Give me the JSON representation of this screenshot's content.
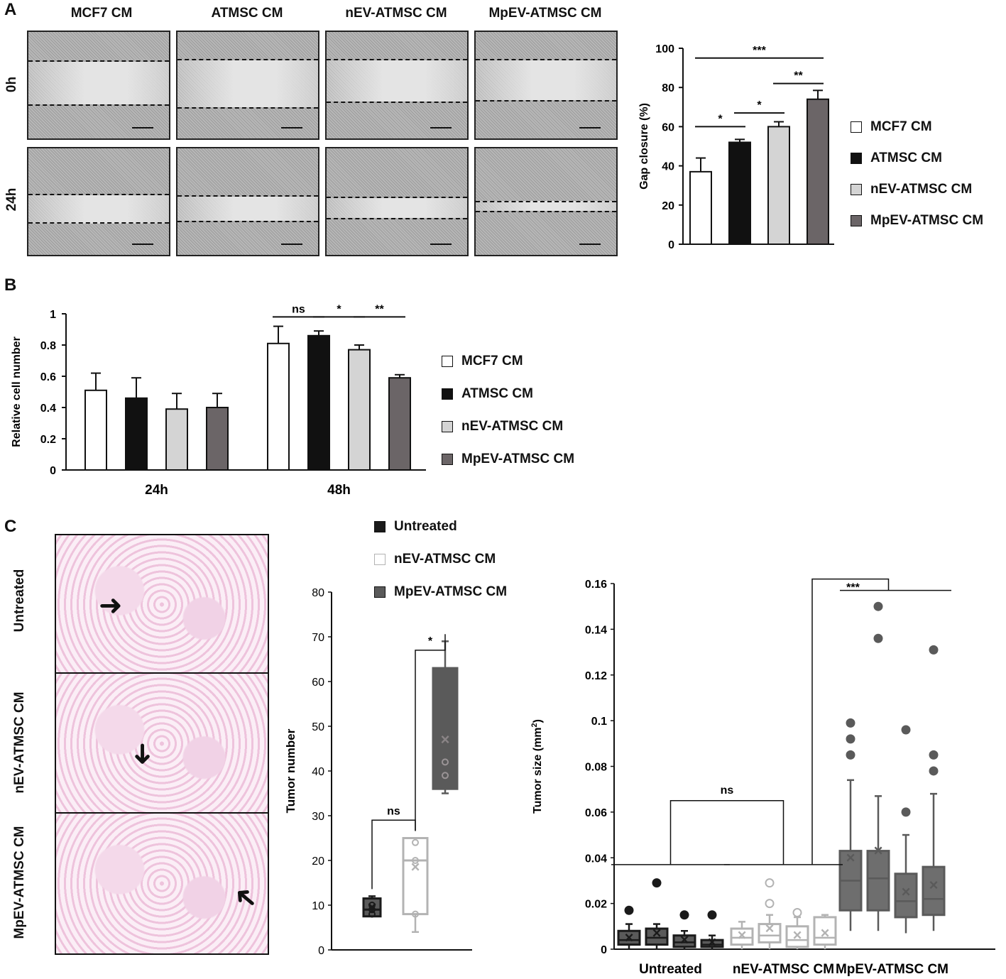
{
  "panels": {
    "a": {
      "label": "A"
    },
    "b": {
      "label": "B"
    },
    "c": {
      "label": "C"
    }
  },
  "panel_a": {
    "columns": [
      "MCF7 CM",
      "ATMSC CM",
      "nEV-ATMSC CM",
      "MpEV-ATMSC CM"
    ],
    "rows": [
      "0h",
      "24h"
    ]
  },
  "panel_c_images": {
    "rows": [
      "Untreated",
      "nEV-ATMSC CM",
      "MpEV-ATMSC CM"
    ]
  },
  "colors": {
    "white": "#ffffff",
    "black": "#111111",
    "light_gray": "#d4d4d4",
    "dark_gray": "#6b6567",
    "box_dark": "#1a1a1a",
    "box_light": "#b3b3b3",
    "box_mid": "#5a5a5a"
  },
  "chart_data": [
    {
      "type": "bar",
      "ylabel": "Gap closure (%)",
      "ylim": [
        0,
        100
      ],
      "yticks": [
        0,
        20,
        40,
        60,
        80,
        100
      ],
      "categories": [
        "MCF7 CM",
        "ATMSC CM",
        "nEV-ATMSC CM",
        "MpEV-ATMSC CM"
      ],
      "values": [
        37,
        52,
        60,
        74
      ],
      "errors": [
        7,
        1.5,
        2.5,
        4.5
      ],
      "legend": [
        "MCF7 CM",
        "ATMSC CM",
        "nEV-ATMSC CM",
        "MpEV-ATMSC CM"
      ],
      "significance": [
        {
          "from": 0,
          "to": 1,
          "label": "*",
          "y": 60
        },
        {
          "from": 1,
          "to": 2,
          "label": "*",
          "y": 67
        },
        {
          "from": 2,
          "to": 3,
          "label": "**",
          "y": 82
        },
        {
          "from": 0,
          "to": 3,
          "label": "***",
          "y": 95
        }
      ]
    },
    {
      "type": "bar",
      "ylabel": "Relative cell number",
      "ylim": [
        0,
        1
      ],
      "yticks": [
        "0",
        "0.2",
        "0.4",
        "0.6",
        "0.8",
        "1"
      ],
      "categories": [
        "24h",
        "48h"
      ],
      "series": [
        {
          "name": "MCF7 CM",
          "values": [
            0.51,
            0.81
          ],
          "errors": [
            0.11,
            0.11
          ]
        },
        {
          "name": "ATMSC CM",
          "values": [
            0.46,
            0.86
          ],
          "errors": [
            0.13,
            0.03
          ]
        },
        {
          "name": "nEV-ATMSC CM",
          "values": [
            0.39,
            0.77
          ],
          "errors": [
            0.1,
            0.03
          ]
        },
        {
          "name": "MpEV-ATMSC CM",
          "values": [
            0.4,
            0.59
          ],
          "errors": [
            0.09,
            0.02
          ]
        }
      ],
      "significance": [
        {
          "group": 1,
          "from": 0,
          "to": 1,
          "label": "ns",
          "y": 0.98
        },
        {
          "group": 1,
          "from": 1,
          "to": 2,
          "label": "*",
          "y": 0.98
        },
        {
          "group": 1,
          "from": 2,
          "to": 3,
          "label": "**",
          "y": 0.98
        }
      ]
    },
    {
      "type": "box",
      "ylabel": "Tumor number",
      "ylim": [
        0,
        80
      ],
      "yticks": [
        0,
        10,
        20,
        30,
        40,
        50,
        60,
        70,
        80
      ],
      "legend": [
        "Untreated",
        "nEV-ATMSC CM",
        "MpEV-ATMSC CM"
      ],
      "boxes": [
        {
          "name": "Untreated",
          "min": 7.5,
          "q1": 7.5,
          "median": 9,
          "q3": 11.5,
          "max": 12,
          "mean": 9.5,
          "points": [
            9,
            10,
            8
          ]
        },
        {
          "name": "nEV-ATMSC CM",
          "min": 4,
          "q1": 8,
          "median": 20,
          "q3": 25,
          "max": 25,
          "mean": 18.5,
          "points": [
            20,
            24,
            8
          ]
        },
        {
          "name": "MpEV-ATMSC CM",
          "min": 35,
          "q1": 36,
          "median": 42,
          "q3": 63,
          "max": 69,
          "mean": 47,
          "points": [
            39,
            42
          ]
        }
      ],
      "significance": [
        {
          "from": 0,
          "to": 1,
          "label": "ns",
          "y": 29
        },
        {
          "from": 1,
          "to": 2,
          "label": "*",
          "y": 67
        }
      ]
    },
    {
      "type": "box",
      "ylabel": "Tumor size (mm",
      "ylabel_sup": "2",
      "ylabel_end": ")",
      "ylim": [
        0,
        0.16
      ],
      "yticks": [
        "0",
        "0.02",
        "0.04",
        "0.06",
        "0.08",
        "0.1",
        "0.12",
        "0.14",
        "0.16"
      ],
      "groups": [
        "Untreated",
        "nEV-ATMSC CM",
        "MpEV-ATMSC CM"
      ],
      "boxes": [
        {
          "group": 0,
          "q1": 0.002,
          "median": 0.004,
          "q3": 0.008,
          "min": 0,
          "max": 0.011,
          "mean": 0.005,
          "outliers": [
            0.017
          ]
        },
        {
          "group": 0,
          "q1": 0.002,
          "median": 0.005,
          "q3": 0.009,
          "min": 0,
          "max": 0.011,
          "mean": 0.007,
          "outliers": [
            0.029
          ]
        },
        {
          "group": 0,
          "q1": 0.001,
          "median": 0.003,
          "q3": 0.006,
          "min": 0,
          "max": 0.008,
          "mean": 0.004,
          "outliers": [
            0.015
          ]
        },
        {
          "group": 0,
          "q1": 0.001,
          "median": 0.002,
          "q3": 0.004,
          "min": 0,
          "max": 0.006,
          "mean": 0.003,
          "outliers": [
            0.015
          ]
        },
        {
          "group": 1,
          "q1": 0.002,
          "median": 0.005,
          "q3": 0.009,
          "min": 0,
          "max": 0.012,
          "mean": 0.006,
          "outliers": []
        },
        {
          "group": 1,
          "q1": 0.003,
          "median": 0.006,
          "q3": 0.011,
          "min": 0,
          "max": 0.015,
          "mean": 0.009,
          "outliers": [
            0.029,
            0.02
          ]
        },
        {
          "group": 1,
          "q1": 0.001,
          "median": 0.004,
          "q3": 0.01,
          "min": 0,
          "max": 0.014,
          "mean": 0.006,
          "outliers": [
            0.016
          ]
        },
        {
          "group": 1,
          "q1": 0.002,
          "median": 0.005,
          "q3": 0.014,
          "min": 0,
          "max": 0.015,
          "mean": 0.007,
          "outliers": []
        },
        {
          "group": 2,
          "q1": 0.017,
          "median": 0.03,
          "q3": 0.043,
          "min": 0.008,
          "max": 0.074,
          "mean": 0.04,
          "outliers": [
            0.085,
            0.092,
            0.099
          ]
        },
        {
          "group": 2,
          "q1": 0.017,
          "median": 0.031,
          "q3": 0.043,
          "min": 0.008,
          "max": 0.067,
          "mean": 0.043,
          "outliers": [
            0.136,
            0.15
          ]
        },
        {
          "group": 2,
          "q1": 0.014,
          "median": 0.021,
          "q3": 0.033,
          "min": 0.007,
          "max": 0.05,
          "mean": 0.025,
          "outliers": [
            0.06,
            0.096
          ]
        },
        {
          "group": 2,
          "q1": 0.015,
          "median": 0.022,
          "q3": 0.036,
          "min": 0.008,
          "max": 0.068,
          "mean": 0.028,
          "outliers": [
            0.078,
            0.085,
            0.131
          ]
        }
      ],
      "significance": [
        {
          "label": "ns",
          "between": [
            "Untreated",
            "nEV-ATMSC CM"
          ]
        },
        {
          "label": "***",
          "between": [
            "Untreated + nEV-ATMSC CM",
            "MpEV-ATMSC CM"
          ]
        }
      ]
    }
  ]
}
